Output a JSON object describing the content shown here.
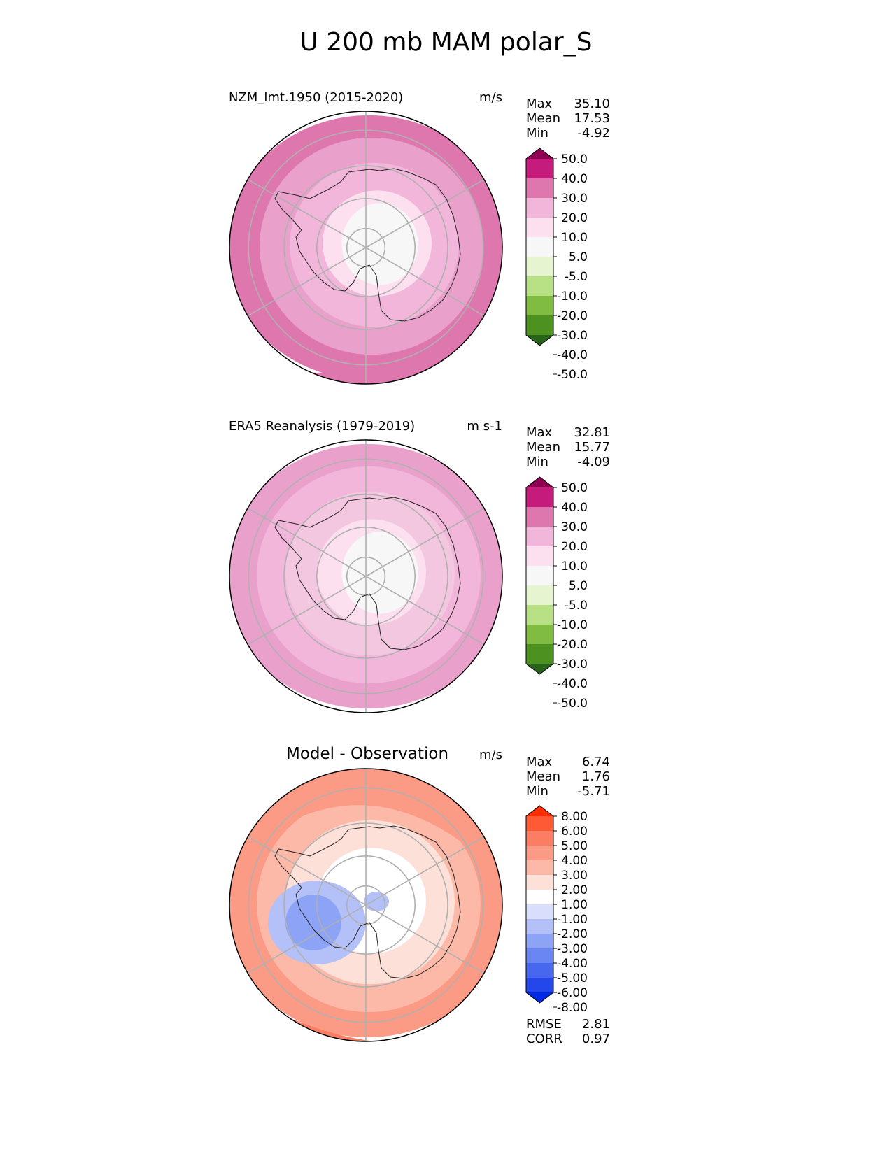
{
  "title": "U 200 mb MAM polar_S",
  "chart_data": [
    {
      "type": "heatmap",
      "projection": "south polar stereographic",
      "title": "NZM_lmt.1950 (2015-2020)",
      "units": "m/s",
      "stats": {
        "max": "35.10",
        "mean": "17.53",
        "min": "-4.92"
      },
      "stat_labels": {
        "max": "Max",
        "mean": "Mean",
        "min": "Min"
      },
      "colorbar": {
        "levels": [
          "50.0",
          "40.0",
          "30.0",
          "20.0",
          "10.0",
          "5.0",
          "-5.0",
          "-10.0",
          "-20.0",
          "-30.0",
          "-40.0",
          "-50.0"
        ],
        "colors": [
          "#8e0152",
          "#c51b7d",
          "#de77ae",
          "#f1b6da",
          "#fde0ef",
          "#f7f7f7",
          "#e6f5d0",
          "#b8e186",
          "#7fbc41",
          "#4d9221",
          "#276419"
        ]
      },
      "rings": [
        "#fde0ef",
        "#f1b6da",
        "#e9a1cc",
        "#de77ae"
      ]
    },
    {
      "type": "heatmap",
      "projection": "south polar stereographic",
      "title": "ERA5 Reanalysis (1979-2019)",
      "units": "m s-1",
      "stats": {
        "max": "32.81",
        "mean": "15.77",
        "min": "-4.09"
      },
      "stat_labels": {
        "max": "Max",
        "mean": "Mean",
        "min": "Min"
      },
      "colorbar": {
        "levels": [
          "50.0",
          "40.0",
          "30.0",
          "20.0",
          "10.0",
          "5.0",
          "-5.0",
          "-10.0",
          "-20.0",
          "-30.0",
          "-40.0",
          "-50.0"
        ],
        "colors": [
          "#8e0152",
          "#c51b7d",
          "#de77ae",
          "#f1b6da",
          "#fde0ef",
          "#f7f7f7",
          "#e6f5d0",
          "#b8e186",
          "#7fbc41",
          "#4d9221",
          "#276419"
        ]
      },
      "rings": [
        "#fde0ef",
        "#f4c7e1",
        "#f1b6da",
        "#e9a1cc"
      ]
    },
    {
      "type": "heatmap",
      "projection": "south polar stereographic",
      "title": "Model - Observation",
      "units": "m/s",
      "stats": {
        "max": "6.74",
        "mean": "1.76",
        "min": "-5.71"
      },
      "stat_labels": {
        "max": "Max",
        "mean": "Mean",
        "min": "Min"
      },
      "metrics": {
        "rmse": "2.81",
        "corr": "0.97"
      },
      "metric_labels": {
        "rmse": "RMSE",
        "corr": "CORR"
      },
      "colorbar": {
        "levels": [
          "8.00",
          "6.00",
          "5.00",
          "4.00",
          "3.00",
          "2.00",
          "1.00",
          "-1.00",
          "-2.00",
          "-3.00",
          "-4.00",
          "-5.00",
          "-6.00",
          "-8.00"
        ],
        "colors": [
          "#ff2d00",
          "#ff5a36",
          "#fb7d63",
          "#fb9a85",
          "#fcb9a8",
          "#fde0d8",
          "#ffffff",
          "#d8defb",
          "#b3c1f8",
          "#8da3f5",
          "#6a86f2",
          "#4767ee",
          "#2347ea",
          "#0029e6"
        ]
      },
      "rings": [
        "#ffffff",
        "#fde0d8",
        "#fcb9a8",
        "#fb9a85"
      ]
    }
  ]
}
